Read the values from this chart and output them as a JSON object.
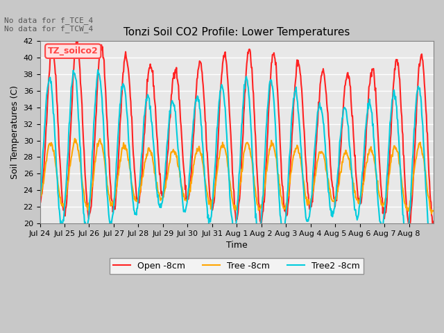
{
  "title": "Tonzi Soil CO2 Profile: Lower Temperatures",
  "xlabel": "Time",
  "ylabel": "Soil Temperatures (C)",
  "ylim": [
    20,
    42
  ],
  "yticks": [
    20,
    22,
    24,
    26,
    28,
    30,
    32,
    34,
    36,
    38,
    40,
    42
  ],
  "annotation_lines": [
    "No data for f_TCE_4",
    "No data for f_TCW_4"
  ],
  "legend_box_label": "TZ_soilco2",
  "legend_box_color": "#FF4444",
  "legend_box_bg": "#FFE0E0",
  "colors": {
    "Open -8cm": "#FF2222",
    "Tree -8cm": "#FFA500",
    "Tree2 -8cm": "#00CCDD"
  },
  "x_tick_labels": [
    "Jul 24",
    "Jul 25",
    "Jul 26",
    "Jul 27",
    "Jul 28",
    "Jul 29",
    "Jul 30",
    "Jul 31",
    "Aug 1",
    "Aug 2",
    "Aug 3",
    "Aug 4",
    "Aug 5",
    "Aug 6",
    "Aug 7",
    "Aug 8"
  ],
  "background_color": "#E8E8E8",
  "grid_color": "#FFFFFF",
  "line_width": 1.5
}
